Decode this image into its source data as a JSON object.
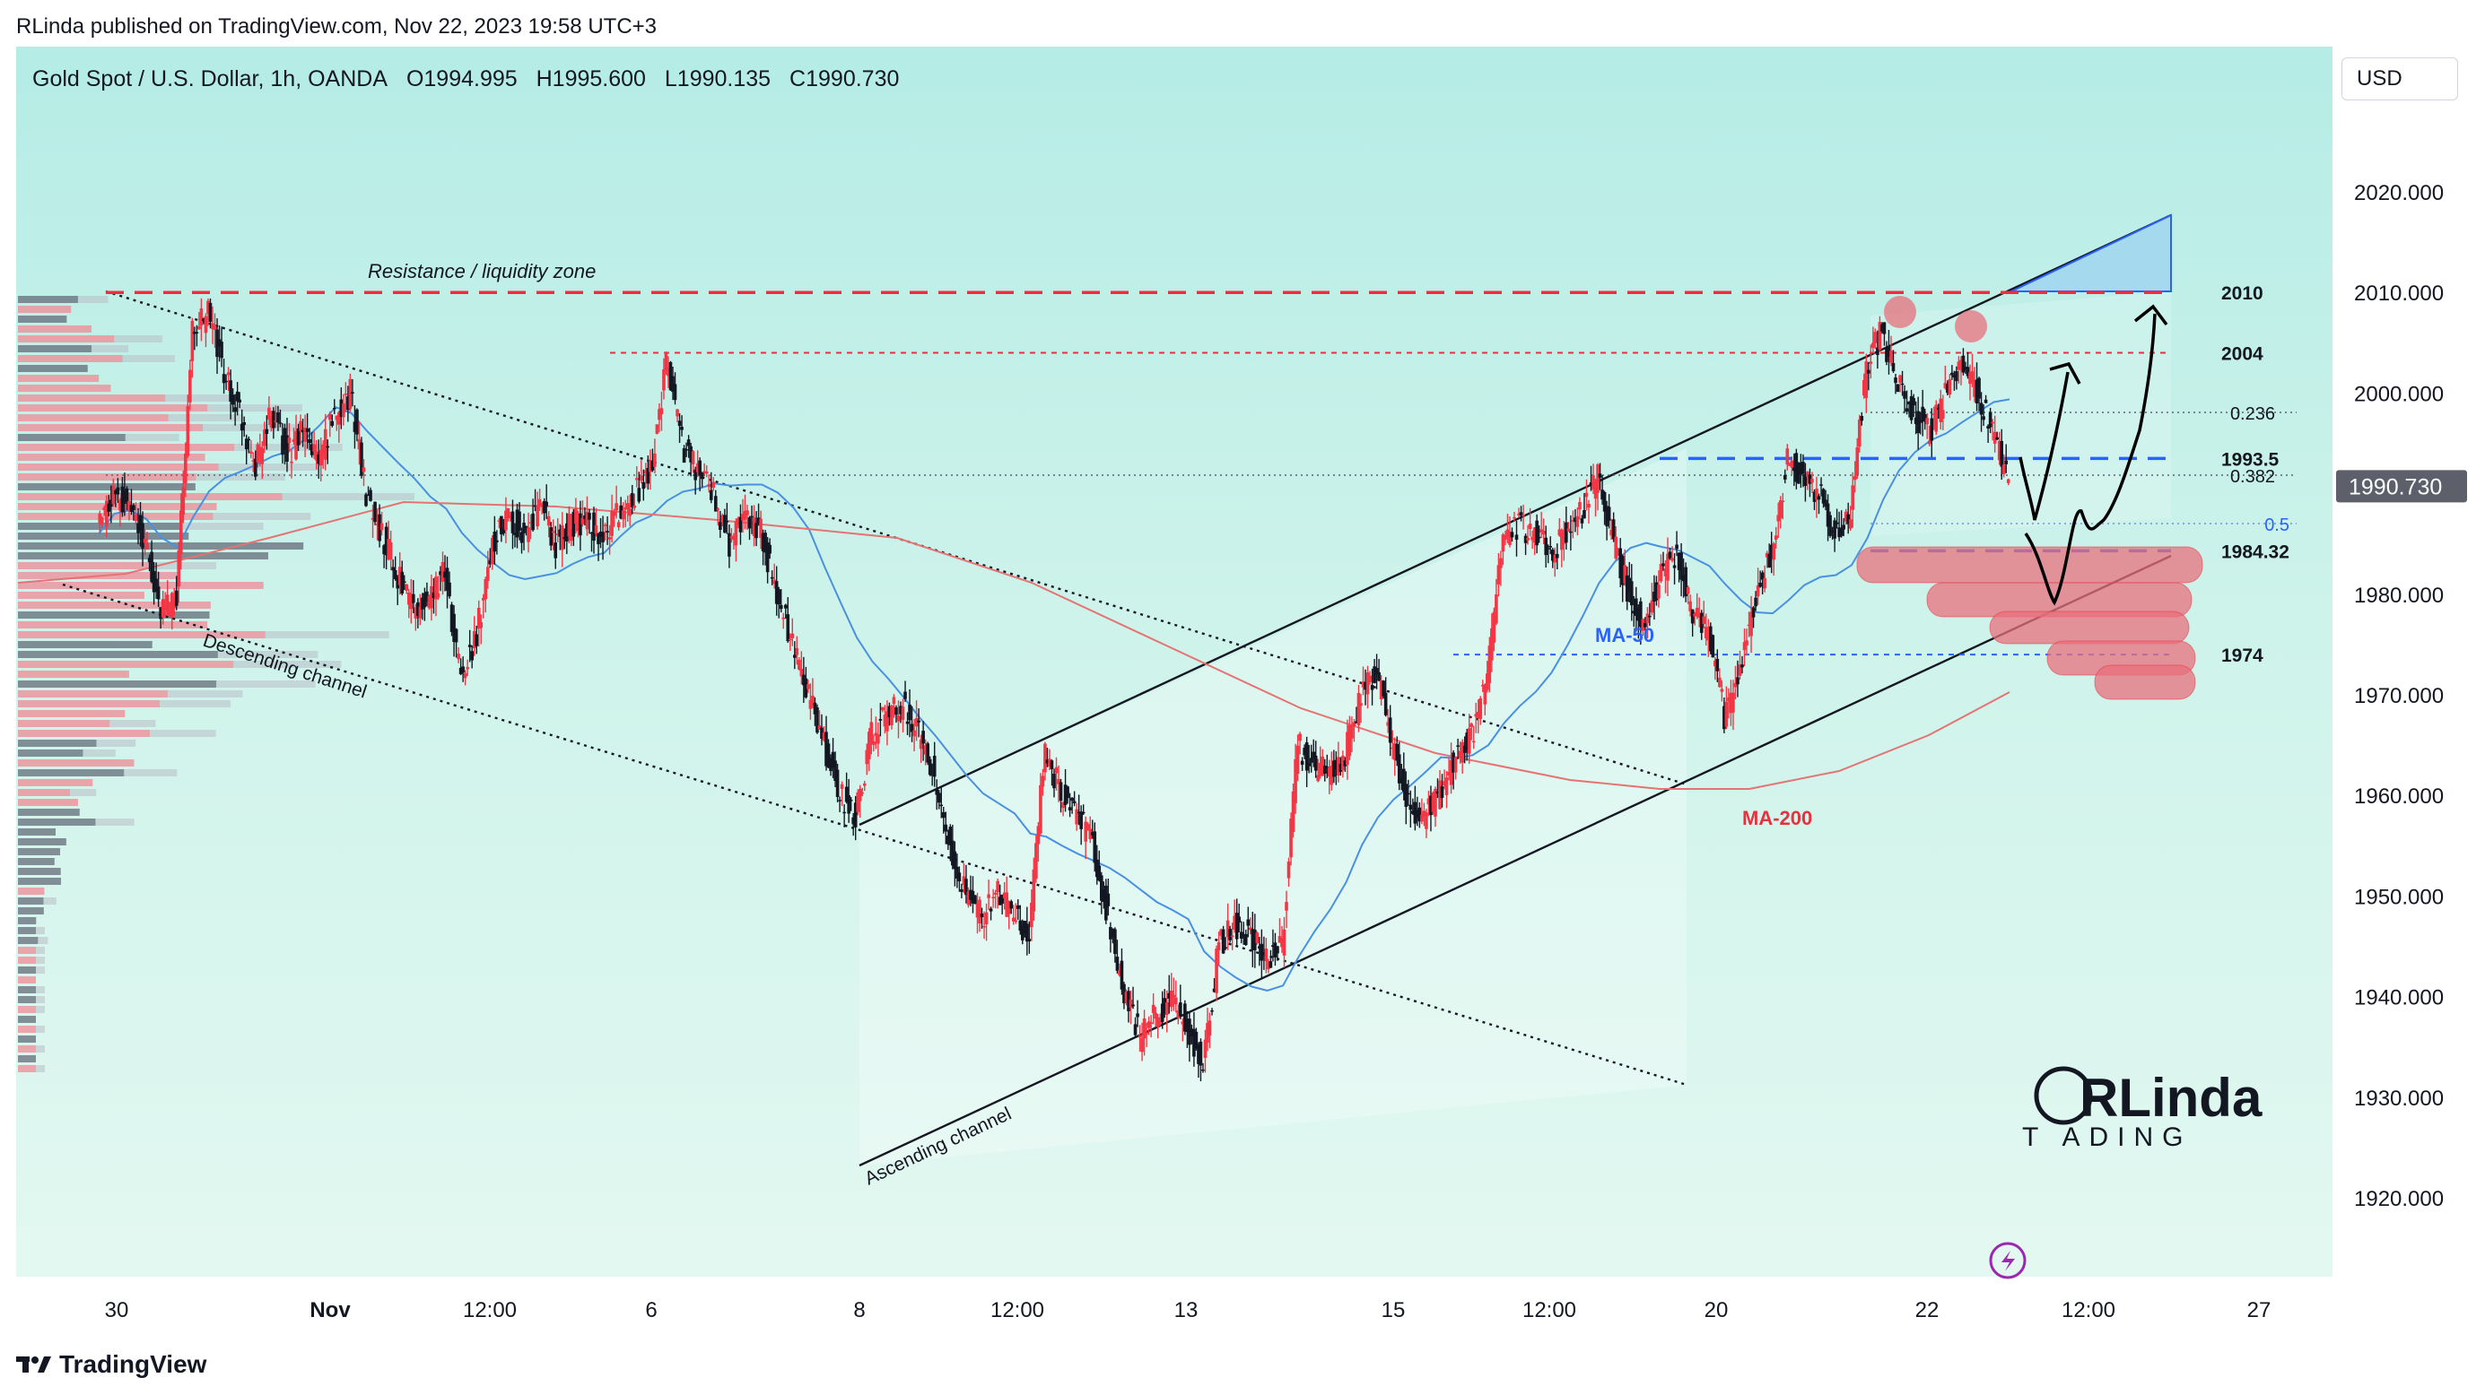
{
  "publisher": "RLinda published on TradingView.com, Nov 22, 2023 19:58 UTC+3",
  "legend": {
    "symbol": "Gold Spot / U.S. Dollar, 1h, OANDA",
    "open": "O1994.995",
    "high": "H1995.600",
    "low": "L1990.135",
    "close": "C1990.730"
  },
  "currency_button": "USD",
  "footer_brand": "TradingView",
  "logo_text": {
    "top": "RLinda",
    "bottom": "T ADING"
  },
  "colors": {
    "bull": "#f23645",
    "bear": "#131722",
    "ma50": "#4a90e2",
    "ma200": "#e57373",
    "resistance": "#e8303f",
    "support": "#2962ff",
    "zone": "#e8707c"
  },
  "chart_data": {
    "type": "candlestick",
    "series_name": "Gold Spot / U.S. Dollar, 1h, OANDA",
    "x_ticks": [
      "30",
      "Nov",
      "12:00",
      "6",
      "8",
      "12:00",
      "13",
      "15",
      "12:00",
      "20",
      "22",
      "12:00",
      "27"
    ],
    "y_ticks": [
      "2020.000",
      "2010.000",
      "2000.000",
      "1990.000",
      "1980.000",
      "1970.000",
      "1960.000",
      "1950.000",
      "1940.000",
      "1930.000",
      "1920.000"
    ],
    "ylim": [
      1910,
      2030
    ],
    "last_price": "1990.730",
    "price_path": [
      [
        0,
        1986
      ],
      [
        1,
        1990
      ],
      [
        2,
        1989
      ],
      [
        3,
        1985
      ],
      [
        4,
        1978
      ],
      [
        5,
        1980
      ],
      [
        6,
        2006
      ],
      [
        7,
        2008
      ],
      [
        8,
        2002
      ],
      [
        9,
        1998
      ],
      [
        10,
        1993
      ],
      [
        11,
        1998
      ],
      [
        12,
        1994
      ],
      [
        13,
        1996
      ],
      [
        14,
        1993
      ],
      [
        15,
        1998
      ],
      [
        16,
        2000
      ],
      [
        17,
        1990
      ],
      [
        18,
        1986
      ],
      [
        19,
        1982
      ],
      [
        20,
        1978
      ],
      [
        21,
        1980
      ],
      [
        22,
        1982
      ],
      [
        23,
        1972
      ],
      [
        24,
        1976
      ],
      [
        25,
        1985
      ],
      [
        26,
        1988
      ],
      [
        27,
        1986
      ],
      [
        28,
        1989
      ],
      [
        29,
        1985
      ],
      [
        30,
        1987
      ],
      [
        31,
        1987
      ],
      [
        32,
        1986
      ],
      [
        33,
        1988
      ],
      [
        34,
        1990
      ],
      [
        35,
        1992
      ],
      [
        36,
        2003
      ],
      [
        37,
        1995
      ],
      [
        38,
        1992
      ],
      [
        39,
        1990
      ],
      [
        40,
        1985
      ],
      [
        41,
        1988
      ],
      [
        42,
        1986
      ],
      [
        43,
        1980
      ],
      [
        44,
        1975
      ],
      [
        45,
        1970
      ],
      [
        46,
        1965
      ],
      [
        47,
        1960
      ],
      [
        48,
        1958
      ],
      [
        49,
        1966
      ],
      [
        50,
        1968
      ],
      [
        51,
        1969
      ],
      [
        52,
        1966
      ],
      [
        53,
        1962
      ],
      [
        54,
        1955
      ],
      [
        55,
        1950
      ],
      [
        56,
        1948
      ],
      [
        57,
        1950
      ],
      [
        58,
        1948
      ],
      [
        59,
        1946
      ],
      [
        60,
        1965
      ],
      [
        61,
        1960
      ],
      [
        62,
        1958
      ],
      [
        63,
        1955
      ],
      [
        64,
        1948
      ],
      [
        65,
        1940
      ],
      [
        66,
        1936
      ],
      [
        67,
        1938
      ],
      [
        68,
        1940
      ],
      [
        69,
        1937
      ],
      [
        70,
        1933
      ],
      [
        71,
        1945
      ],
      [
        72,
        1947
      ],
      [
        73,
        1946
      ],
      [
        74,
        1944
      ],
      [
        75,
        1945
      ],
      [
        76,
        1965
      ],
      [
        77,
        1963
      ],
      [
        78,
        1962
      ],
      [
        79,
        1964
      ],
      [
        80,
        1970
      ],
      [
        81,
        1972
      ],
      [
        82,
        1965
      ],
      [
        83,
        1959
      ],
      [
        84,
        1958
      ],
      [
        85,
        1960
      ],
      [
        86,
        1964
      ],
      [
        87,
        1966
      ],
      [
        88,
        1972
      ],
      [
        89,
        1986
      ],
      [
        90,
        1987
      ],
      [
        91,
        1986
      ],
      [
        92,
        1984
      ],
      [
        93,
        1986
      ],
      [
        94,
        1988
      ],
      [
        95,
        1992
      ],
      [
        96,
        1985
      ],
      [
        97,
        1980
      ],
      [
        98,
        1977
      ],
      [
        99,
        1982
      ],
      [
        100,
        1984
      ],
      [
        101,
        1978
      ],
      [
        102,
        1976
      ],
      [
        103,
        1968
      ],
      [
        104,
        1972
      ],
      [
        105,
        1980
      ],
      [
        106,
        1984
      ],
      [
        107,
        1993
      ],
      [
        108,
        1992
      ],
      [
        109,
        1990
      ],
      [
        110,
        1986
      ],
      [
        111,
        1988
      ],
      [
        112,
        2003
      ],
      [
        113,
        2006
      ],
      [
        114,
        2001
      ],
      [
        115,
        1998
      ],
      [
        116,
        1996
      ],
      [
        117,
        2000
      ],
      [
        118,
        2003
      ],
      [
        119,
        2000
      ],
      [
        120,
        1996
      ],
      [
        121,
        1990.73
      ]
    ],
    "moving_averages": [
      {
        "name": "MA-50",
        "color": "#4a90e2"
      },
      {
        "name": "MA-200",
        "color": "#e57373"
      }
    ],
    "levels": [
      {
        "value": 2010,
        "label": "2010",
        "style": "dashed",
        "color": "#e8303f"
      },
      {
        "value": 2004,
        "label": "2004",
        "style": "dashed",
        "color": "#e8303f"
      },
      {
        "value": 1993.5,
        "label": "1993.5",
        "style": "dashed",
        "color": "#2962ff"
      },
      {
        "value": 1984.32,
        "label": "1984.32",
        "style": "dashed",
        "color": "#2962ff"
      },
      {
        "value": 1974,
        "label": "1974",
        "style": "dashed",
        "color": "#2962ff"
      }
    ],
    "fib_levels": [
      {
        "label": "0.236"
      },
      {
        "label": "0.382"
      },
      {
        "label": "0.5"
      }
    ],
    "annotations": [
      "Resistance / liquidity zone",
      "Descending channel",
      "Ascending channel",
      "MA-50",
      "MA-200"
    ]
  }
}
